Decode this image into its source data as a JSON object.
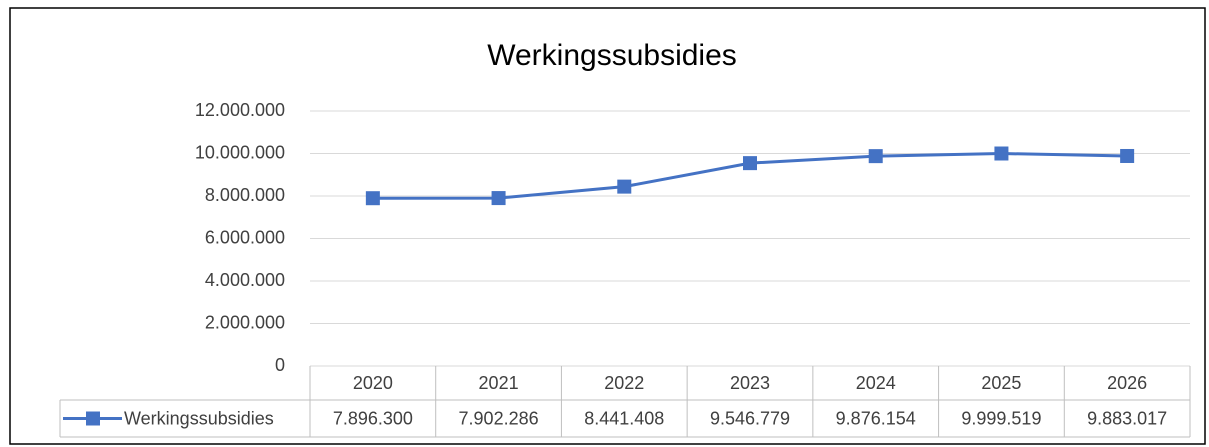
{
  "chart_data": {
    "type": "line",
    "title": "Werkingssubsidies",
    "categories": [
      "2020",
      "2021",
      "2022",
      "2023",
      "2024",
      "2025",
      "2026"
    ],
    "series": [
      {
        "name": "Werkingssubsidies",
        "color": "#4472c4",
        "values": [
          7896300,
          7902286,
          8441408,
          9546779,
          9876154,
          9999519,
          9883017
        ],
        "value_labels": [
          "7.896.300",
          "7.902.286",
          "8.441.408",
          "9.546.779",
          "9.876.154",
          "9.999.519",
          "9.883.017"
        ]
      }
    ],
    "ylim": [
      0,
      12000000
    ],
    "yticks": [
      0,
      {
        "value": 2000000,
        "label": "2.000.000"
      },
      {
        "value": 4000000,
        "label": "4.000.000"
      },
      {
        "value": 6000000,
        "label": "6.000.000"
      },
      {
        "value": 8000000,
        "label": "8.000.000"
      },
      {
        "value": 10000000,
        "label": "10.000.000"
      },
      {
        "value": 12000000,
        "label": "12.000.000"
      }
    ],
    "grid": true
  }
}
